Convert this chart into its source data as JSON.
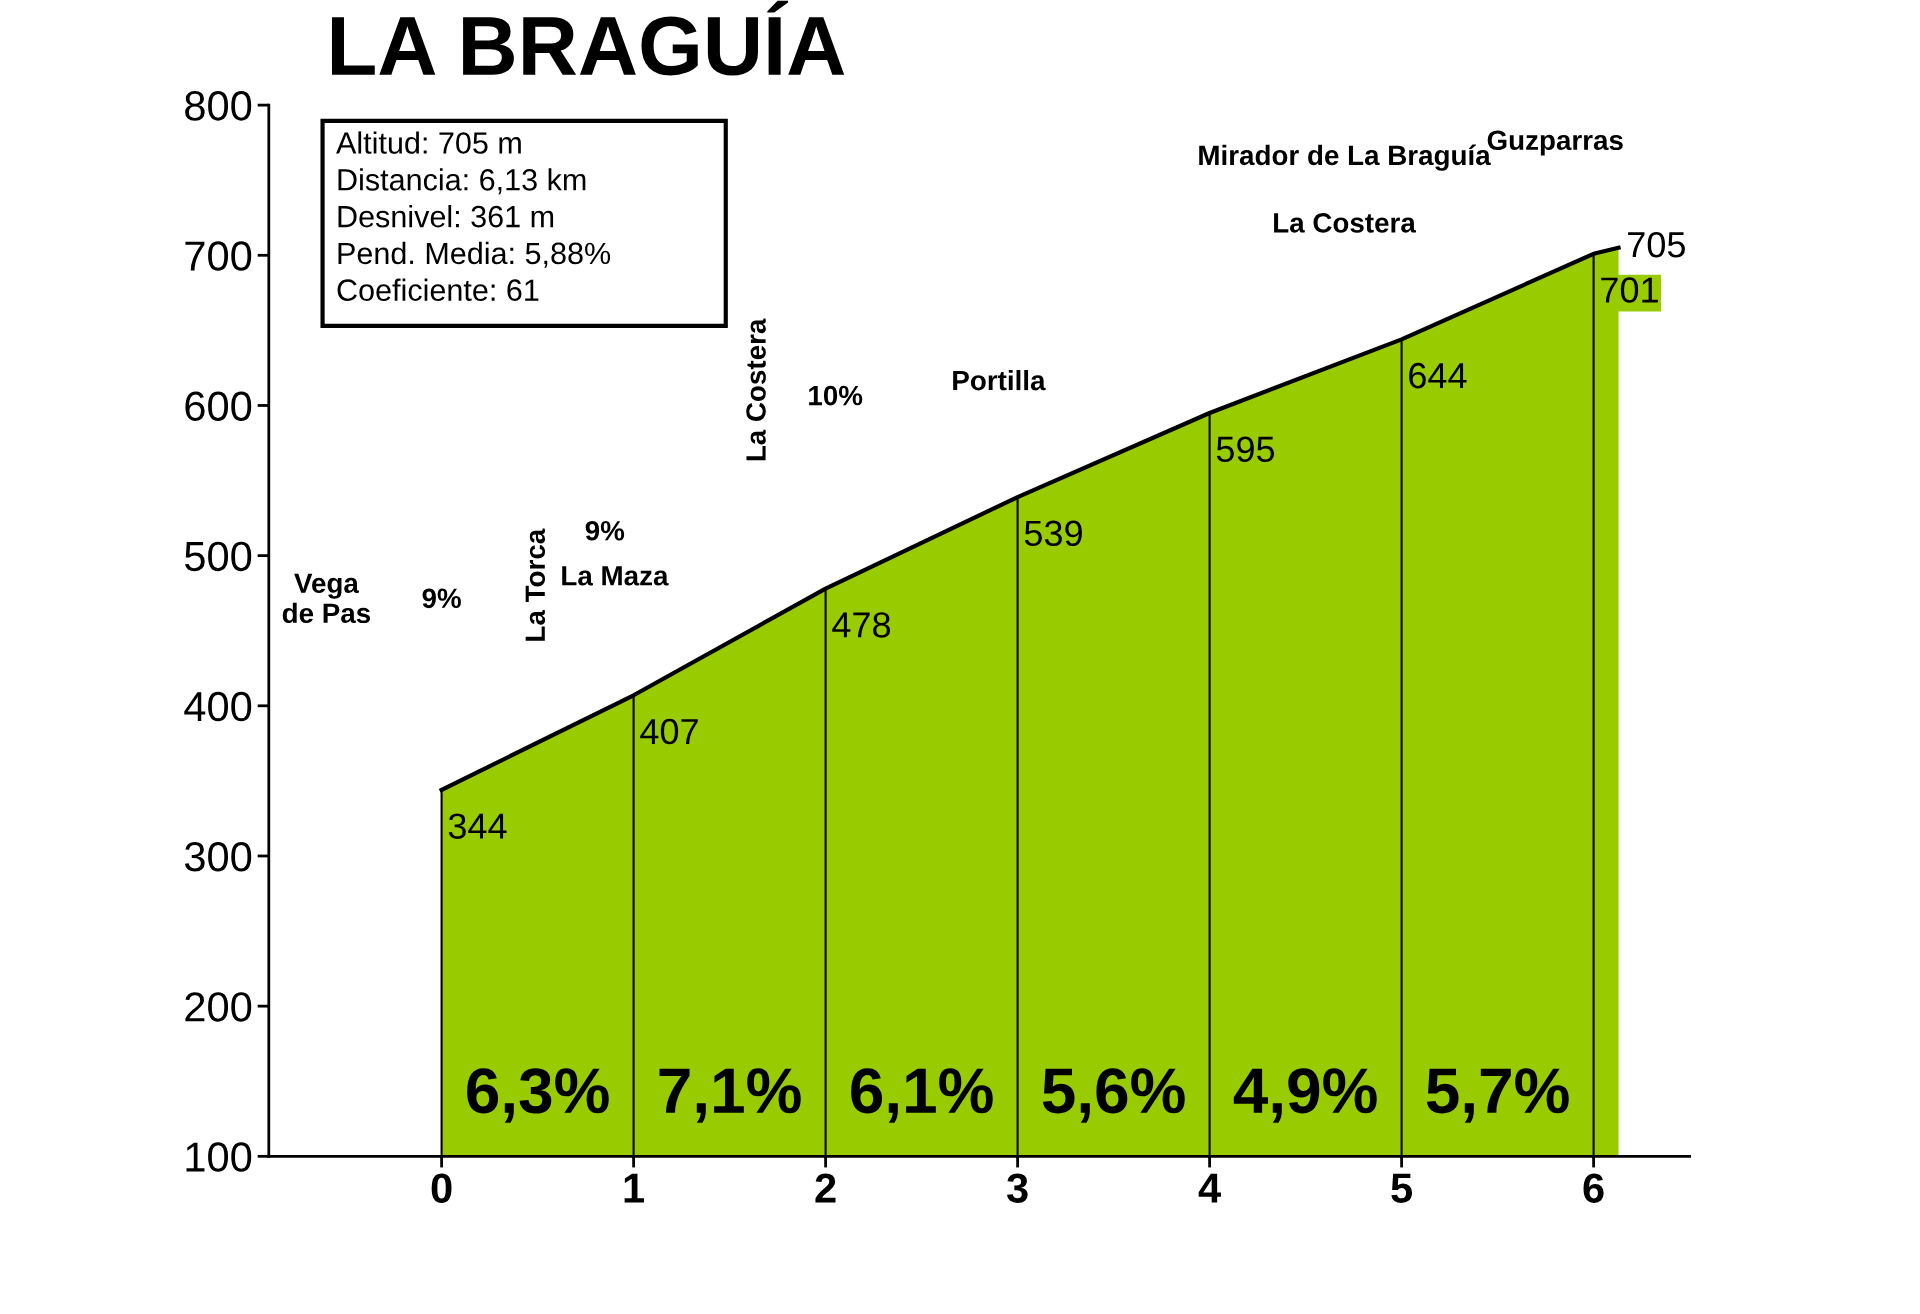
{
  "chart_data": {
    "type": "area",
    "title": "LA BRAGUÍA",
    "x": [
      0,
      1,
      2,
      3,
      4,
      5,
      6,
      6.13
    ],
    "series": [
      {
        "color": "#99cc00",
        "values": [
          344,
          407,
          478,
          539,
          595,
          644,
          701,
          705
        ]
      }
    ],
    "data_labels": true,
    "xlim": [
      -0.9,
      6.5
    ],
    "xticks": [
      0,
      1,
      2,
      3,
      4,
      5,
      6
    ],
    "ylim": [
      100,
      800
    ],
    "yticks": [
      100,
      200,
      300,
      400,
      500,
      600,
      700,
      800
    ],
    "grid": false,
    "legend": false,
    "ref_lines": [
      {
        "axis": "x",
        "value": 0,
        "color": "#000000"
      },
      {
        "axis": "x",
        "value": 1,
        "color": "#000000"
      },
      {
        "axis": "x",
        "value": 2,
        "color": "#000000"
      },
      {
        "axis": "x",
        "value": 3,
        "color": "#000000"
      },
      {
        "axis": "x",
        "value": 4,
        "color": "#000000"
      },
      {
        "axis": "x",
        "value": 5,
        "color": "#000000"
      },
      {
        "axis": "x",
        "value": 6,
        "color": "#000000"
      }
    ],
    "annotations": [
      "Altitud: 705 m",
      "Distancia: 6,13 km",
      "Desnivel: 361 m",
      "Pend. Media: 5,88%",
      "Coeficiente: 61",
      "6,3%",
      "7,1%",
      "6,1%",
      "5,6%",
      "4,9%",
      "5,7%",
      "Vega\nde Pas",
      "9%",
      "La Torca",
      "9%",
      "La Maza",
      "La Costera",
      "10%",
      "Portilla",
      "La Costera",
      "Mirador de La Braguía",
      "Guzparras"
    ]
  }
}
